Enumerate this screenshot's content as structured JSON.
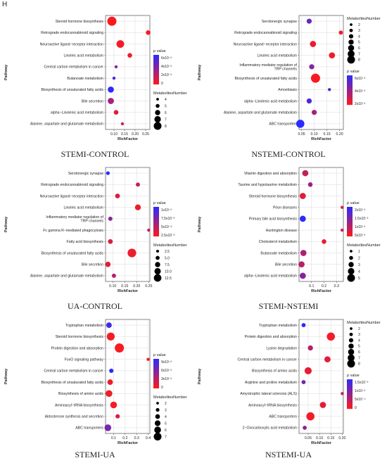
{
  "figure_label": "H",
  "colors": {
    "low_p": "#ff1a1a",
    "high_p": "#2b2bff",
    "grid": "#d9d9d9",
    "axis": "#333333"
  },
  "chart_data": [
    {
      "type": "scatter",
      "title": "STEMI-CONTROL",
      "xlabel": "RichFactor",
      "ylabel": "Pathway",
      "xlim": [
        0.06,
        0.27
      ],
      "xticks": [
        0.1,
        0.15,
        0.2,
        0.25
      ],
      "xtick_labels": [
        "0.10",
        "0.15",
        "0.20",
        "0.25"
      ],
      "color_legend": {
        "title": "p value",
        "tick_labels": [
          "6x10⁻²",
          "4x10⁻²",
          "2x10⁻²",
          "0"
        ],
        "range": [
          0,
          0.07
        ]
      },
      "size_legend": {
        "title": "MetabolitesNumber",
        "values": [
          4,
          5,
          6,
          7,
          8
        ],
        "range": [
          4,
          8
        ]
      },
      "pathways": [
        "Steroid hormone biosynthesis",
        "Retrograde endocannabinoid signaling",
        "Neuroactive ligand−receptor interaction",
        "Linoleic acid metabolism",
        "Central carbon metabolism in cancer",
        "Butanoate metabolism",
        "Biosynthesis of unsaturated fatty acids",
        "Bile secretion",
        "alpha−Linolenic acid metabolism",
        "Alanine, aspartate and glutamate metabolism"
      ],
      "rich_factor": [
        0.09,
        0.262,
        0.13,
        0.175,
        0.11,
        0.1,
        0.085,
        0.085,
        0.11,
        0.14
      ],
      "metabolites_number": [
        8,
        5,
        7,
        5,
        4,
        4,
        6,
        6,
        5,
        4
      ],
      "p_value": [
        0.002,
        0.003,
        0.004,
        0.005,
        0.04,
        0.06,
        0.07,
        0.03,
        0.01,
        0.015
      ]
    },
    {
      "type": "scatter",
      "title": "NSTEMI-CONTROL",
      "xlabel": "RichFactor",
      "ylabel": "Pathway",
      "xlim": [
        0.04,
        0.215
      ],
      "xticks": [
        0.05,
        0.1,
        0.15,
        0.2
      ],
      "xtick_labels": [
        "0.05",
        "0.10",
        "0.15",
        "0.20"
      ],
      "color_legend": {
        "title": "p value",
        "tick_labels": [
          "6x10⁻²",
          "4x10⁻²",
          "2x10⁻²"
        ],
        "range": [
          0,
          0.07
        ]
      },
      "size_legend": {
        "title": "MetabolitesNumber",
        "values": [
          2,
          3,
          4,
          5,
          6,
          7,
          8
        ],
        "range": [
          2,
          8
        ]
      },
      "pathways": [
        "Serotonergic synapse",
        "Retrograde endocannabinoid signaling",
        "Neuroactive ligand−receptor interaction",
        "Linoleic acid metabolism",
        "Inflammatory mediator regulation of TRP channels",
        "Biosynthesis of unsaturated fatty acids",
        "Amoebiasis",
        "alpha−Linolenic acid metabolism",
        "Alanine, aspartate and glutamate metabolism",
        "ABC transporters"
      ],
      "rich_factor": [
        0.08,
        0.205,
        0.095,
        0.17,
        0.09,
        0.105,
        0.16,
        0.08,
        0.1,
        0.045
      ],
      "metabolites_number": [
        4,
        3,
        5,
        5,
        4,
        8,
        2,
        4,
        4,
        7
      ],
      "p_value": [
        0.05,
        0.005,
        0.006,
        0.004,
        0.04,
        0.002,
        0.06,
        0.06,
        0.03,
        0.07
      ]
    },
    {
      "type": "scatter",
      "title": "UA-CONTROL",
      "xlabel": "RichFactor",
      "ylabel": "Pathway",
      "xlim": [
        0.07,
        0.255
      ],
      "xticks": [
        0.1,
        0.15,
        0.2,
        0.25
      ],
      "xtick_labels": [
        "0.10",
        "0.15",
        "0.20",
        "0.25"
      ],
      "color_legend": {
        "title": "p value",
        "tick_labels": [
          "1x10⁻²",
          "7.5x10⁻³",
          "5x10⁻³",
          "2.5x10⁻³"
        ],
        "range": [
          0,
          0.011
        ]
      },
      "size_legend": {
        "title": "MetabolitesNumber",
        "values": [
          2.5,
          5.0,
          7.5,
          10.0,
          12.5
        ],
        "value_labels": [
          "2.5",
          "5.0",
          "7.5",
          "10.0",
          "12.5"
        ],
        "range": [
          2,
          13
        ]
      },
      "pathways": [
        "Serotonergic synapse",
        "Retrograde endocannabinoid signaling",
        "Neuroactive ligand−receptor interaction",
        "Linoleic acid metabolism",
        "Inflammatory mediator regulation of TRP channels",
        "Fc gamma R−mediated phagocytosis",
        "Fatty acid biosynthesis",
        "Biosynthesis of unsaturated fatty acids",
        "Bile secretion",
        "Alanine, aspartate and glutamate metabolism"
      ],
      "rich_factor": [
        0.08,
        0.205,
        0.12,
        0.205,
        0.09,
        0.25,
        0.09,
        0.18,
        0.08,
        0.105
      ],
      "metabolites_number": [
        3,
        4,
        5,
        7,
        4,
        2,
        5,
        12,
        6,
        4
      ],
      "p_value": [
        0.011,
        0.003,
        0.002,
        0.001,
        0.006,
        0.003,
        0.002,
        0.001,
        0.0015,
        0.004
      ]
    },
    {
      "type": "scatter",
      "title": "STEMI-NSTEMI",
      "xlabel": "RichFactor",
      "ylabel": "Pathway",
      "xlim": [
        0.0,
        0.355
      ],
      "xticks": [
        0.1,
        0.2,
        0.3
      ],
      "xtick_labels": [
        "0.1",
        "0.2",
        "0.3"
      ],
      "color_legend": {
        "title": "p value",
        "tick_labels": [
          "2x10⁻²",
          "1.5x10⁻²",
          "1x10⁻²",
          "5x10⁻³"
        ],
        "range": [
          0,
          0.021
        ]
      },
      "size_legend": {
        "title": "MetabolitesNumber",
        "values": [
          1,
          2,
          3,
          4,
          5
        ],
        "range": [
          1,
          5
        ]
      },
      "pathways": [
        "Vitamin digestion and absorption",
        "Taurine and hypotaurine metabolism",
        "Steroid hormone biosynthesis",
        "Prion diseases",
        "Primary bile acid biosynthesis",
        "Huntington disease",
        "Cholesterol metabolism",
        "Butanoate metabolism",
        "Bile secretion",
        "alpha−Linolenic acid metabolism"
      ],
      "rich_factor": [
        0.05,
        0.09,
        0.03,
        0.345,
        0.03,
        0.345,
        0.2,
        0.035,
        0.02,
        0.03
      ],
      "metabolites_number": [
        3,
        2,
        3,
        1,
        3,
        1,
        2,
        3,
        3,
        3
      ],
      "p_value": [
        0.006,
        0.01,
        0.003,
        0.004,
        0.021,
        0.005,
        0.002,
        0.008,
        0.007,
        0.012
      ]
    },
    {
      "type": "scatter",
      "title": "STEMI-UA",
      "xlabel": "RichFactor",
      "ylabel": "Pathway",
      "xlim": [
        0.03,
        0.415
      ],
      "xticks": [
        0.1,
        0.2,
        0.3,
        0.4
      ],
      "xtick_labels": [
        "0.1",
        "0.2",
        "0.3",
        "0.4"
      ],
      "color_legend": {
        "title": "p value",
        "tick_labels": [
          "9x10⁻²",
          "6x10⁻²",
          "3x10⁻²",
          "0"
        ],
        "range": [
          0,
          0.11
        ]
      },
      "size_legend": {
        "title": "MetabolitesNumber",
        "values": [
          2,
          3,
          4,
          5,
          6,
          7
        ],
        "range": [
          2,
          7
        ]
      },
      "pathways": [
        "Tryptophan metabolism",
        "Steroid hormone biosynthesis",
        "Protein digestion and absorption",
        "FoxO signaling pathway",
        "Central carbon metabolism in cancer",
        "Biosynthesis of unsaturated fatty acids",
        "Biosynthesis of amino acids",
        "Aminoacyl−tRNA biosynthesis",
        "Aldosterone synthesis and secretion",
        "ABC transporters"
      ],
      "rich_factor": [
        0.06,
        0.075,
        0.15,
        0.4,
        0.08,
        0.07,
        0.06,
        0.1,
        0.135,
        0.05
      ],
      "metabolites_number": [
        4,
        6,
        7,
        2,
        3,
        4,
        5,
        5,
        3,
        5
      ],
      "p_value": [
        0.1,
        0.005,
        0.003,
        0.008,
        0.11,
        0.01,
        0.006,
        0.004,
        0.02,
        0.07
      ]
    },
    {
      "type": "scatter",
      "title": "NSTEMI-UA",
      "xlabel": "RichFactor",
      "ylabel": "Pathway",
      "xlim": [
        0.01,
        0.205
      ],
      "xticks": [
        0.05,
        0.1,
        0.15,
        0.2
      ],
      "xtick_labels": [
        "0.05",
        "0.10",
        "0.15",
        "0.20"
      ],
      "color_legend": {
        "title": "p value",
        "tick_labels": [
          "1.5x10⁻³",
          "1x10⁻³",
          "5x10⁻⁴",
          "0"
        ],
        "range": [
          0,
          0.0017
        ]
      },
      "size_legend": {
        "title": "MetabolitesNumber",
        "values": [
          2,
          3,
          4,
          5,
          6,
          7,
          8
        ],
        "range": [
          2,
          8
        ]
      },
      "pathways": [
        "Tryptophan metabolism",
        "Protein digestion and absorption",
        "Lysine degradation",
        "Central carbon metabolism in cancer",
        "Biosynthesis of amino acids",
        "Arginine and proline metabolism",
        "Amyotrophic lateral sclerosis (ALS)",
        "Aminoacyl−tRNA biosynthesis",
        "ABC transporters",
        "2−Oxocarboxylic acid metabolism"
      ],
      "rich_factor": [
        0.03,
        0.15,
        0.06,
        0.135,
        0.05,
        0.03,
        0.2,
        0.115,
        0.06,
        0.035
      ],
      "metabolites_number": [
        3,
        7,
        4,
        5,
        6,
        3,
        2,
        5,
        7,
        3
      ],
      "p_value": [
        0.0017,
        0.0001,
        0.0006,
        0.0002,
        0.0002,
        0.0011,
        0.0005,
        0.0002,
        0.0001,
        0.0009
      ]
    }
  ]
}
